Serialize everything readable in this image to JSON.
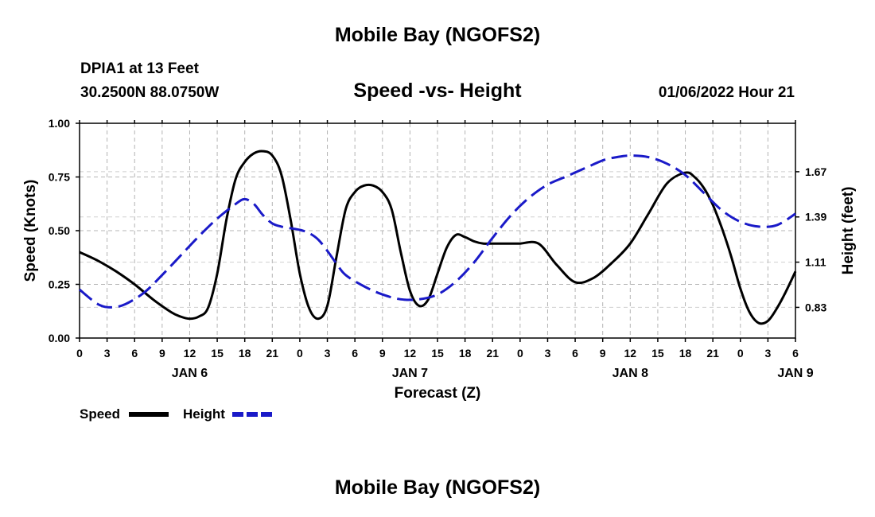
{
  "page": {
    "title": "Mobile Bay (NGOFS2)",
    "station": "DPIA1 at 13 Feet",
    "coords": "30.2500N  88.0750W",
    "chart_title": "Speed -vs- Height",
    "datetime": "01/06/2022 Hour 21",
    "bottom_title": "Mobile Bay (NGOFS2)"
  },
  "legend": {
    "speed_label": "Speed",
    "height_label": "Height"
  },
  "colors": {
    "speed": "#000000",
    "height": "#1a1ac8",
    "grid": "#b4b4b4"
  },
  "chart_data": {
    "type": "line",
    "xlabel": "Forecast (Z)",
    "ylabel": "Speed (Knots)",
    "y2label": "Height (feet)",
    "x_tick_labels": [
      "0",
      "3",
      "6",
      "9",
      "12",
      "15",
      "18",
      "21",
      "0",
      "3",
      "6",
      "9",
      "12",
      "15",
      "18",
      "21",
      "0",
      "3",
      "6",
      "9",
      "12",
      "15",
      "18",
      "21",
      "0",
      "3",
      "6"
    ],
    "date_labels": [
      {
        "label": "JAN 6",
        "hour": 12
      },
      {
        "label": "JAN 7",
        "hour": 36
      },
      {
        "label": "JAN 8",
        "hour": 60
      },
      {
        "label": "JAN 9",
        "hour": 78
      }
    ],
    "x_range_hours": [
      0,
      78
    ],
    "ylim": [
      0,
      1
    ],
    "y_ticks": [
      "0.00",
      "0.25",
      "0.50",
      "0.75",
      "1.00"
    ],
    "y2lim": [
      0.64,
      1.97
    ],
    "y2_ticks": [
      "0.83",
      "1.11",
      "1.39",
      "1.67"
    ],
    "grid": true,
    "legend_position": "bottom-left",
    "series": [
      {
        "name": "Speed",
        "axis": "left",
        "style": "solid",
        "x": [
          0,
          2,
          4,
          6,
          8,
          10,
          11,
          12,
          13,
          14,
          15,
          16,
          17,
          18,
          19,
          20,
          21,
          22,
          23,
          24,
          25,
          26,
          27,
          28,
          29,
          30,
          31,
          32,
          33,
          34,
          35,
          36,
          37,
          38,
          39,
          40,
          41,
          42,
          43,
          44,
          45,
          46,
          47,
          48,
          50,
          52,
          54,
          56,
          58,
          60,
          62,
          64,
          66,
          67,
          68,
          69,
          70,
          71,
          72,
          73,
          74,
          75,
          76,
          77,
          78
        ],
        "y": [
          0.4,
          0.36,
          0.31,
          0.25,
          0.18,
          0.12,
          0.1,
          0.09,
          0.1,
          0.14,
          0.3,
          0.55,
          0.74,
          0.82,
          0.86,
          0.87,
          0.85,
          0.76,
          0.55,
          0.3,
          0.14,
          0.09,
          0.15,
          0.38,
          0.6,
          0.68,
          0.71,
          0.71,
          0.68,
          0.6,
          0.4,
          0.22,
          0.15,
          0.18,
          0.3,
          0.42,
          0.48,
          0.47,
          0.45,
          0.44,
          0.44,
          0.44,
          0.44,
          0.44,
          0.44,
          0.34,
          0.26,
          0.28,
          0.35,
          0.44,
          0.58,
          0.72,
          0.77,
          0.75,
          0.7,
          0.62,
          0.51,
          0.38,
          0.23,
          0.12,
          0.07,
          0.08,
          0.14,
          0.22,
          0.31
        ]
      },
      {
        "name": "Height",
        "axis": "right",
        "style": "dashed",
        "x": [
          0,
          2,
          3.5,
          5,
          7,
          9,
          11,
          13,
          15,
          17,
          18,
          19,
          20,
          21,
          22,
          23,
          24,
          25,
          26,
          27,
          28,
          29,
          31,
          33,
          35,
          37,
          39,
          41,
          43,
          45,
          47,
          49,
          51,
          53,
          55,
          57,
          58.5,
          60,
          62,
          64,
          66,
          68,
          70,
          72,
          74,
          76,
          78
        ],
        "y": [
          0.94,
          0.85,
          0.83,
          0.85,
          0.92,
          1.03,
          1.15,
          1.27,
          1.38,
          1.47,
          1.5,
          1.47,
          1.4,
          1.35,
          1.33,
          1.32,
          1.31,
          1.29,
          1.25,
          1.18,
          1.1,
          1.03,
          0.96,
          0.91,
          0.88,
          0.88,
          0.91,
          0.99,
          1.11,
          1.26,
          1.4,
          1.51,
          1.59,
          1.64,
          1.69,
          1.74,
          1.76,
          1.77,
          1.76,
          1.72,
          1.65,
          1.54,
          1.43,
          1.36,
          1.33,
          1.34,
          1.41
        ]
      }
    ]
  }
}
